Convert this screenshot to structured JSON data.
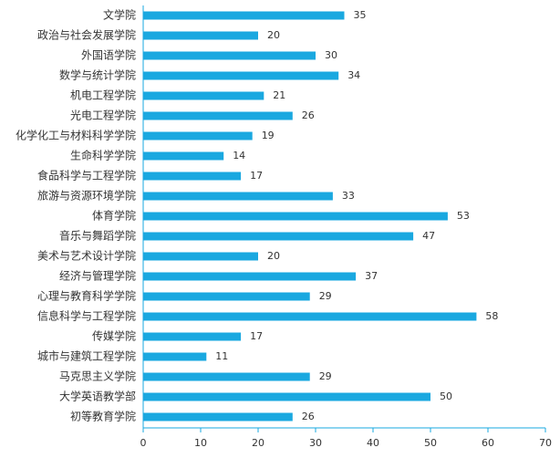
{
  "chart_data": {
    "type": "bar",
    "orientation": "horizontal",
    "title": "",
    "xlabel": "",
    "ylabel": "",
    "categories": [
      "文学院",
      "政治与社会发展学院",
      "外国语学院",
      "数学与统计学院",
      "机电工程学院",
      "光电工程学院",
      "化学化工与材料科学学院",
      "生命科学学院",
      "食品科学与工程学院",
      "旅游与资源环境学院",
      "体育学院",
      "音乐与舞蹈学院",
      "美术与艺术设计学院",
      "经济与管理学院",
      "心理与教育科学学院",
      "信息科学与工程学院",
      "传媒学院",
      "城市与建筑工程学院",
      "马克思主义学院",
      "大学英语教学部",
      "初等教育学院"
    ],
    "values": [
      35,
      20,
      30,
      34,
      21,
      26,
      19,
      14,
      17,
      33,
      53,
      47,
      20,
      37,
      29,
      58,
      17,
      11,
      29,
      50,
      26
    ],
    "xlim": [
      0,
      70
    ],
    "x_ticks": [
      "0",
      "10",
      "20",
      "30",
      "40",
      "50",
      "60",
      "70"
    ],
    "grid": false,
    "legend": "none",
    "colors": {
      "bar": "#1aa8e0",
      "axis": "#1aa8e0",
      "text": "#333333"
    }
  }
}
